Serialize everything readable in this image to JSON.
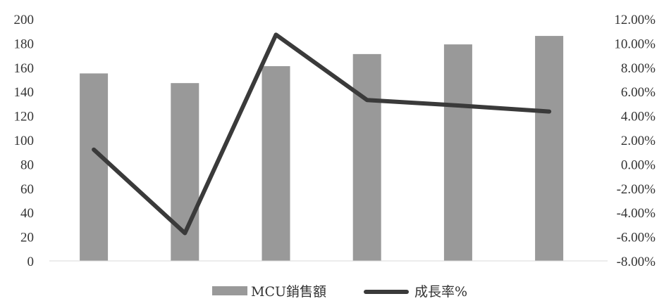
{
  "chart_data": {
    "type": "bar",
    "title": "",
    "xlabel": "",
    "ylabel": "",
    "categories": [
      "",
      "",
      "",
      "",
      "",
      ""
    ],
    "series": [
      {
        "name": "MCU銷售額",
        "type": "bar",
        "axis": "left",
        "color": "#999999",
        "values": [
          155,
          147,
          161,
          171,
          179,
          186
        ]
      },
      {
        "name": "成長率%",
        "type": "line",
        "axis": "right",
        "color": "#3a3a3a",
        "values": [
          1.2,
          -5.7,
          10.7,
          5.3,
          4.85,
          4.35
        ]
      }
    ],
    "ylim_left": [
      0,
      200
    ],
    "ylim_right": [
      -8,
      12
    ],
    "yticks_left": [
      "0",
      "20",
      "40",
      "60",
      "80",
      "100",
      "120",
      "140",
      "160",
      "180",
      "200"
    ],
    "yticks_right": [
      "-8.00%",
      "-6.00%",
      "-4.00%",
      "-2.00%",
      "0.00%",
      "2.00%",
      "4.00%",
      "6.00%",
      "8.00%",
      "10.00%",
      "12.00%"
    ],
    "grid": false,
    "legend_position": "bottom-center"
  }
}
